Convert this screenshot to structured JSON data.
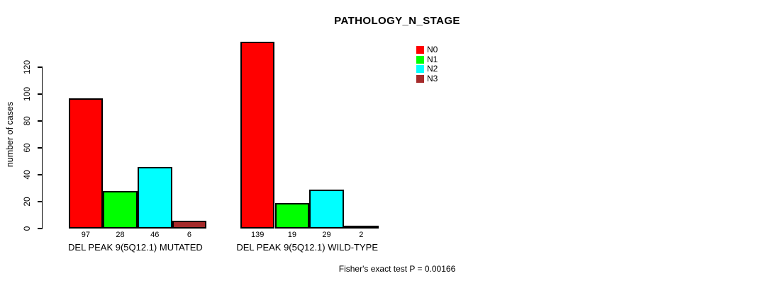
{
  "chart_data": {
    "type": "bar",
    "title": "PATHOLOGY_N_STAGE",
    "ylabel": "number of cases",
    "xlabel": "",
    "ylim": [
      0,
      139
    ],
    "yticks": [
      0,
      20,
      40,
      60,
      80,
      100,
      120
    ],
    "grid": false,
    "legend_position": "top-right-inside",
    "categories": [
      "DEL PEAK 9(5Q12.1) MUTATED",
      "DEL PEAK 9(5Q12.1) WILD-TYPE"
    ],
    "series": [
      {
        "name": "N0",
        "color": "#ff0000",
        "values": [
          97,
          139
        ]
      },
      {
        "name": "N1",
        "color": "#00ff00",
        "values": [
          28,
          19
        ]
      },
      {
        "name": "N2",
        "color": "#00ffff",
        "values": [
          46,
          29
        ]
      },
      {
        "name": "N3",
        "color": "#a52a2a",
        "values": [
          6,
          2
        ]
      }
    ],
    "bar_value_labels_visible": true,
    "annotation": "Fisher's exact test P = 0.00166"
  },
  "colors": {
    "background": "#ffffff",
    "axis": "#000000",
    "text": "#000000",
    "bar_border": "#000000"
  }
}
